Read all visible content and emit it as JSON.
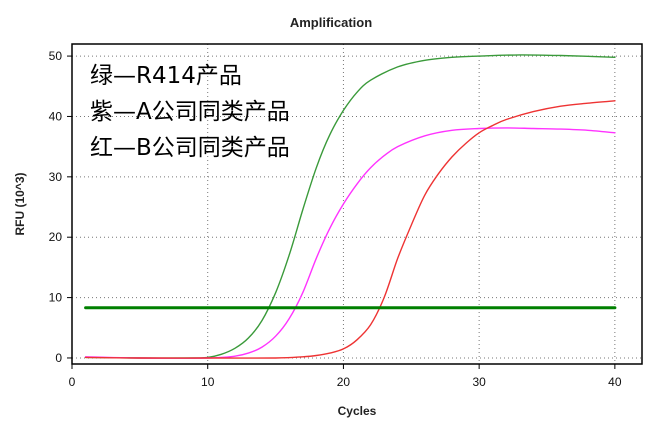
{
  "chart_data": {
    "type": "line",
    "title": "Amplification",
    "xlabel": "Cycles",
    "ylabel": "RFU (10^3)",
    "xlim": [
      0,
      42
    ],
    "ylim": [
      -1,
      52
    ],
    "x_ticks": [
      0,
      10,
      20,
      30,
      40
    ],
    "y_ticks": [
      0,
      10,
      20,
      30,
      40,
      50
    ],
    "grid": "dotted",
    "legend_position": "top-left",
    "legend": [
      "绿—R414产品",
      "紫—A公司同类产品",
      "红—B公司同类产品"
    ],
    "series": [
      {
        "color": "#3a9a3a",
        "x": [
          1,
          5,
          9,
          10,
          11,
          12,
          13,
          14,
          15,
          16,
          17,
          18,
          19,
          20,
          21,
          22,
          24,
          26,
          28,
          30,
          33,
          36,
          40
        ],
        "values": [
          0.1,
          0.0,
          0.0,
          0.1,
          0.6,
          1.6,
          3.3,
          6.2,
          10.8,
          17.0,
          24.5,
          31.5,
          37.0,
          41.0,
          44.0,
          46.0,
          48.2,
          49.3,
          49.8,
          50.0,
          50.2,
          50.1,
          49.8
        ]
      },
      {
        "color": "#ff33ff",
        "x": [
          1,
          5,
          10,
          12,
          13,
          14,
          15,
          16,
          17,
          18,
          19,
          20,
          21,
          22,
          23,
          24,
          26,
          28,
          30,
          32,
          34,
          36,
          38,
          40
        ],
        "values": [
          0.2,
          0.0,
          0.0,
          0.3,
          0.8,
          1.8,
          3.6,
          6.5,
          10.8,
          16.5,
          21.5,
          25.5,
          28.8,
          31.5,
          33.5,
          35.0,
          36.8,
          37.7,
          38.0,
          38.1,
          38.0,
          37.9,
          37.7,
          37.3
        ]
      },
      {
        "color": "#ee3333",
        "x": [
          1,
          5,
          10,
          15,
          17,
          18,
          19,
          20,
          21,
          22,
          23,
          24,
          25,
          26,
          27,
          28,
          29,
          30,
          31,
          32,
          34,
          36,
          38,
          40
        ],
        "values": [
          0.1,
          0.0,
          0.0,
          0.0,
          0.2,
          0.4,
          0.8,
          1.5,
          3.0,
          5.5,
          10.0,
          16.5,
          22.0,
          27.0,
          30.5,
          33.3,
          35.5,
          37.3,
          38.5,
          39.5,
          40.8,
          41.7,
          42.2,
          42.6
        ]
      },
      {
        "color": "#008000",
        "x": [
          1,
          40
        ],
        "values": [
          8.3,
          8.3
        ]
      }
    ]
  }
}
